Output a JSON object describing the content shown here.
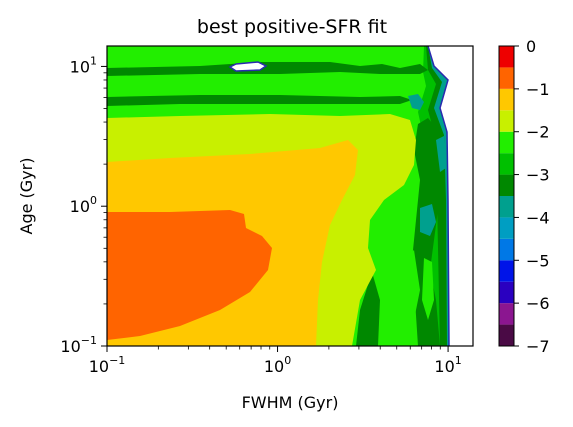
{
  "chart_data": {
    "type": "contourf",
    "title": "best positive-SFR fit",
    "xlabel": "FWHM (Gyr)",
    "ylabel": "Age (Gyr)",
    "xscale": "log",
    "yscale": "log",
    "xlim": [
      0.1,
      14
    ],
    "ylim": [
      0.1,
      14
    ],
    "xticks": [
      {
        "value": 0.1,
        "base": "10",
        "exp": "−1"
      },
      {
        "value": 1,
        "base": "10",
        "exp": "0"
      },
      {
        "value": 10,
        "base": "10",
        "exp": "1"
      }
    ],
    "yticks": [
      {
        "value": 0.1,
        "base": "10",
        "exp": "−1"
      },
      {
        "value": 1,
        "base": "10",
        "exp": "0"
      },
      {
        "value": 10,
        "base": "10",
        "exp": "1"
      }
    ],
    "colorbar": {
      "levels": [
        -7,
        -6.5,
        -6,
        -5.5,
        -5,
        -4.5,
        -4,
        -3.5,
        -3,
        -2.5,
        -2,
        -1.5,
        -1,
        -0.5,
        0
      ],
      "tick_values": [
        0,
        -1,
        -2,
        -3,
        -4,
        -5,
        -6,
        -7
      ],
      "tick_labels": [
        "0",
        "−1",
        "−2",
        "−3",
        "−4",
        "−5",
        "−6",
        "−7"
      ],
      "colors": [
        "#4a0a45",
        "#8b1690",
        "#2a00c0",
        "#0014e8",
        "#0078e6",
        "#009ec2",
        "#00a08e",
        "#008800",
        "#00c000",
        "#22ee00",
        "#c8f000",
        "#ffc800",
        "#ff6400",
        "#ee0000",
        "#d63c3c"
      ]
    },
    "regions": [
      {
        "name": "above -0.5 (none in map)",
        "level": 0
      },
      {
        "name": "-1.5 to -1 (orange-red)",
        "level": -1.5
      },
      {
        "name": "-2 to -1.5 (orange)",
        "level": -2
      },
      {
        "name": "-2.5 to -2 (yellow-green)",
        "level": -2.5
      },
      {
        "name": "-3 to -2.5 (bright green)",
        "level": -3
      },
      {
        "name": "-3.5 to -3 (green)",
        "level": -3.5
      },
      {
        "name": "-4 to -3.5 (dark green)",
        "level": -4
      },
      {
        "name": "-4.5 to -4 (teal)",
        "level": -4.5
      }
    ]
  }
}
